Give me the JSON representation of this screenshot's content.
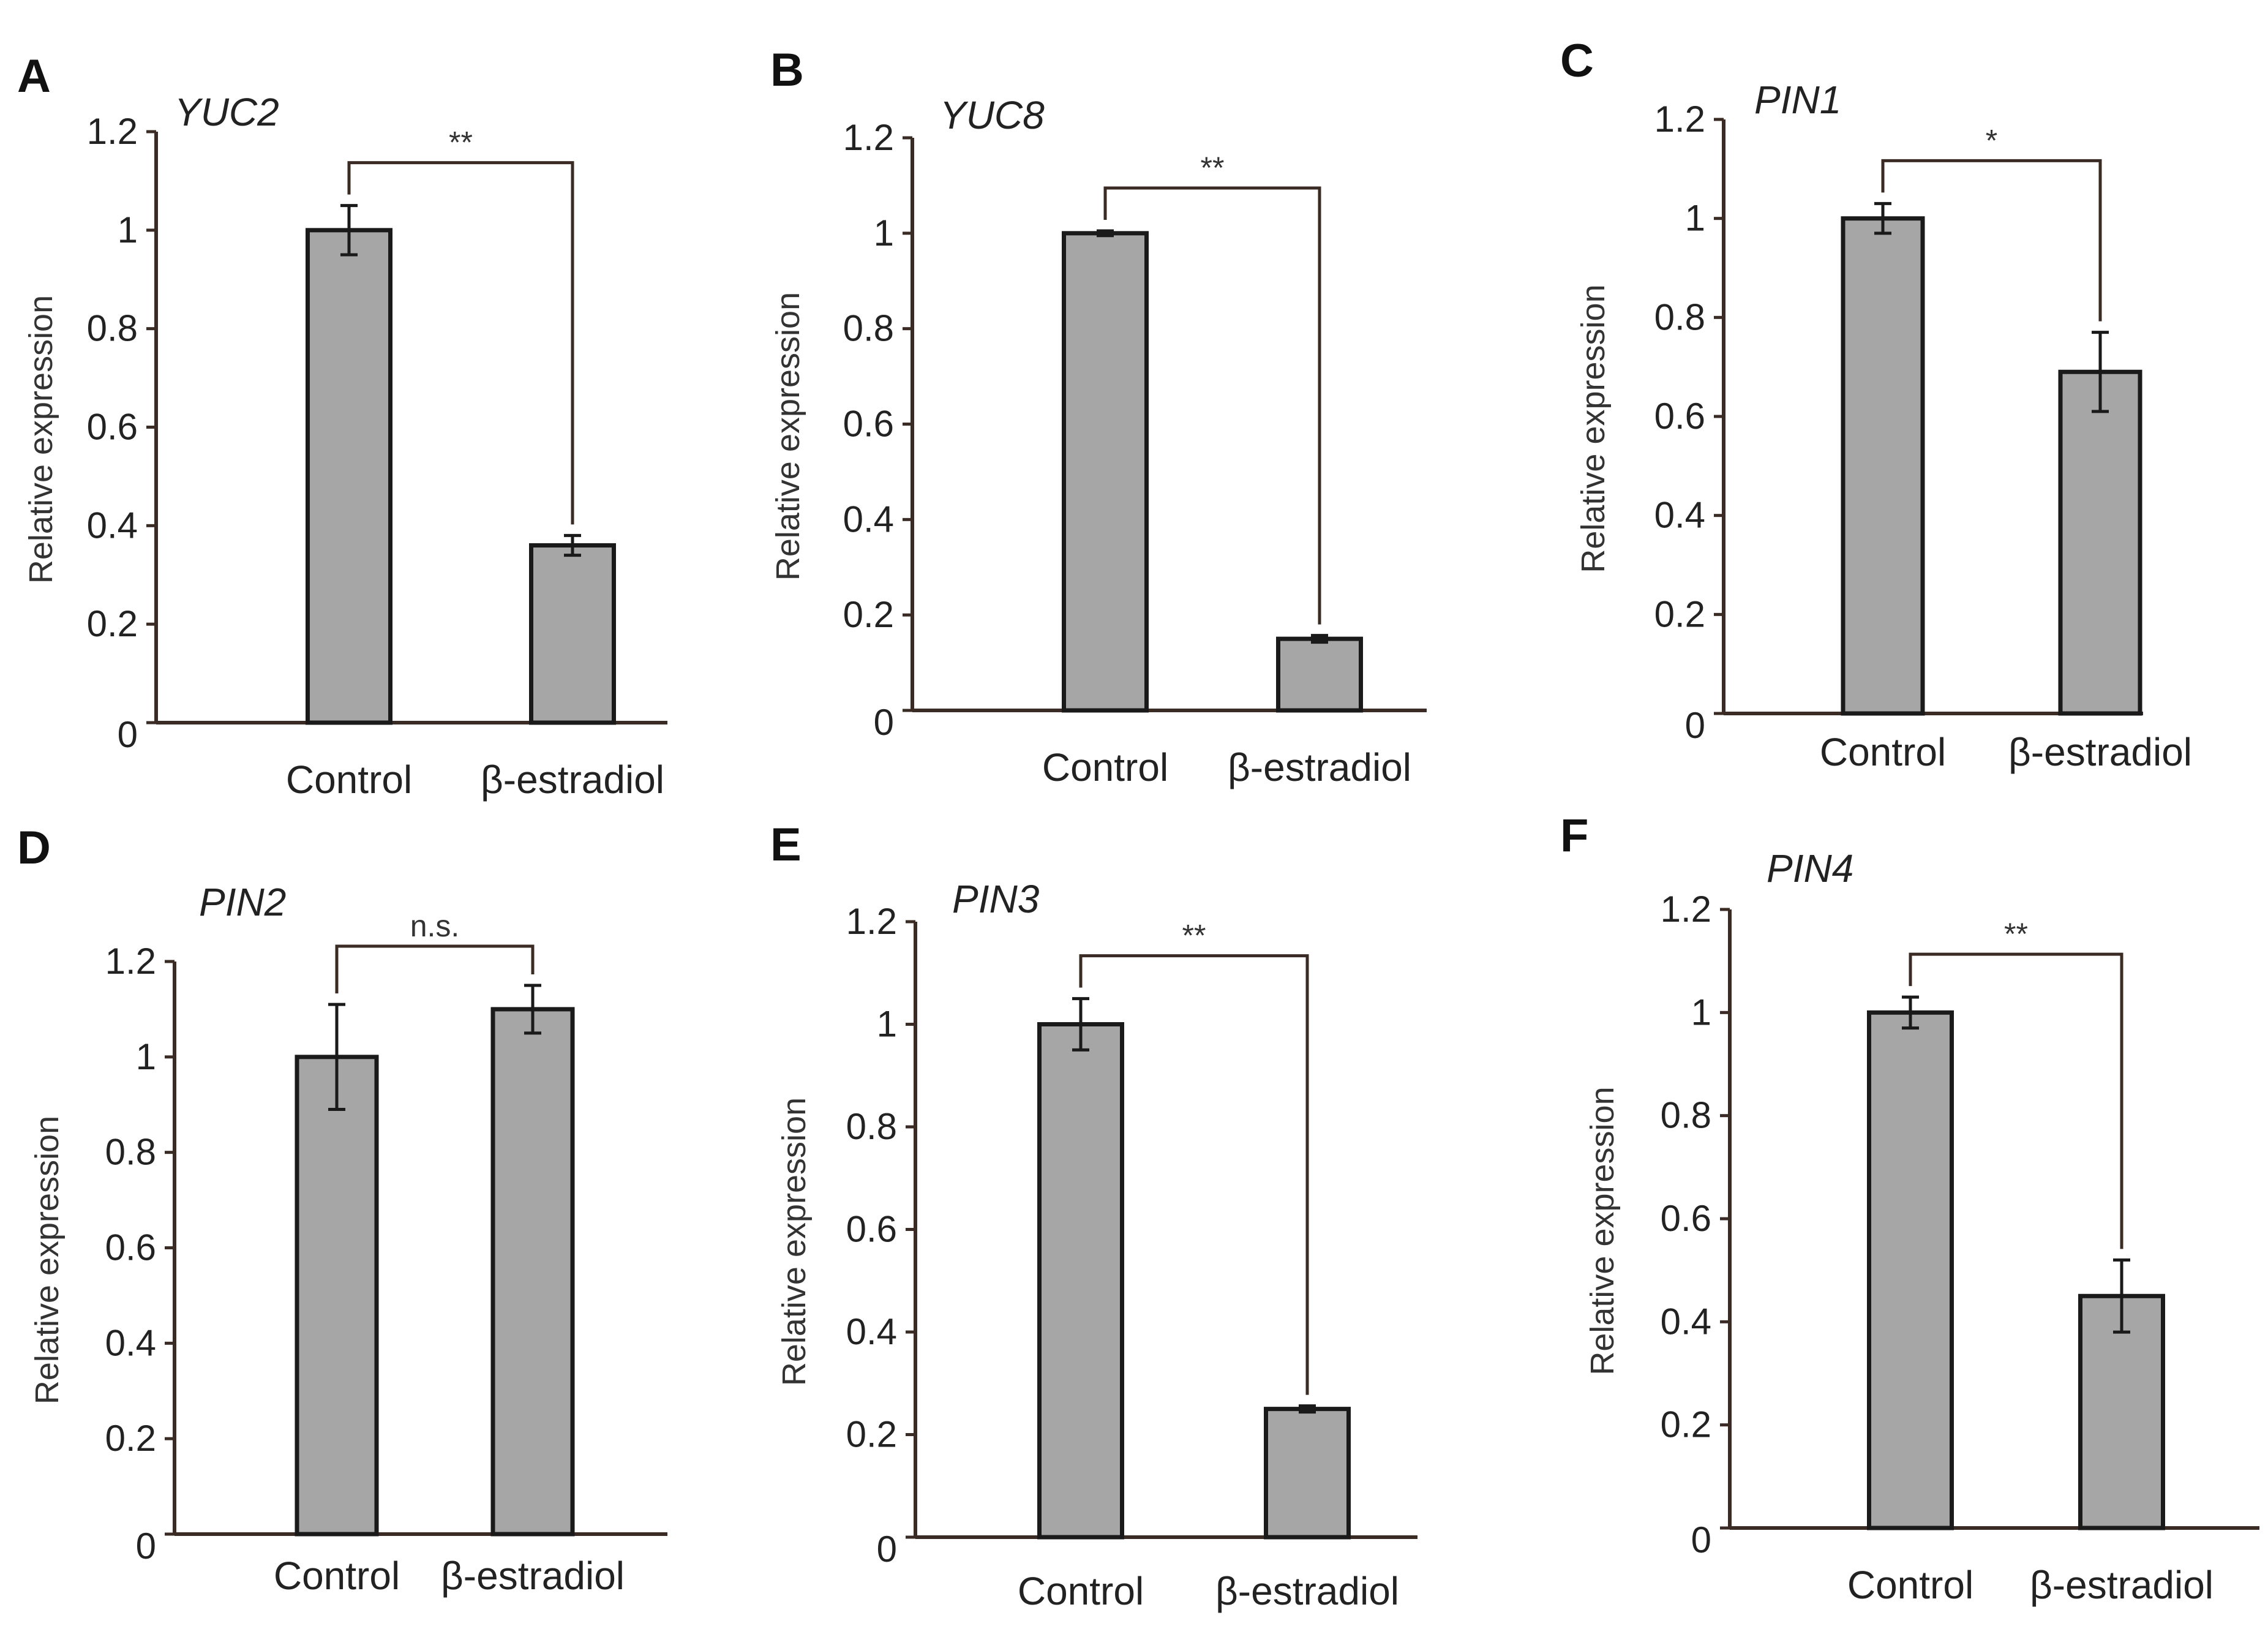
{
  "chart_data": [
    {
      "type": "bar",
      "panel": "A",
      "title": "YUC2",
      "categories": [
        "Control",
        "β-estradiol"
      ],
      "values": [
        1.0,
        0.36
      ],
      "errors": [
        0.05,
        0.02
      ],
      "significance": "**",
      "ylabel": "Relative expression",
      "xlabel": "",
      "ylim": [
        0,
        1.2
      ],
      "yticks": [
        "0",
        "0.2",
        "0.4",
        "0.6",
        "0.8",
        "1",
        "1.2"
      ]
    },
    {
      "type": "bar",
      "panel": "B",
      "title": "YUC8",
      "categories": [
        "Control",
        "β-estradiol"
      ],
      "values": [
        1.0,
        0.15
      ],
      "errors": [
        0.005,
        0.007
      ],
      "significance": "**",
      "ylabel": "Relative expression",
      "xlabel": "",
      "ylim": [
        0,
        1.2
      ],
      "yticks": [
        "0",
        "0.2",
        "0.4",
        "0.6",
        "0.8",
        "1",
        "1.2"
      ]
    },
    {
      "type": "bar",
      "panel": "C",
      "title": "PIN1",
      "categories": [
        "Control",
        "β-estradiol"
      ],
      "values": [
        1.0,
        0.69
      ],
      "errors": [
        0.03,
        0.08
      ],
      "significance": "*",
      "ylabel": "Relative expression",
      "xlabel": "",
      "ylim": [
        0,
        1.2
      ],
      "yticks": [
        "0",
        "0.2",
        "0.4",
        "0.6",
        "0.8",
        "1",
        "1.2"
      ]
    },
    {
      "type": "bar",
      "panel": "D",
      "title": "PIN2",
      "categories": [
        "Control",
        "β-estradiol"
      ],
      "values": [
        1.0,
        1.1
      ],
      "errors": [
        0.11,
        0.05
      ],
      "significance": "n.s.",
      "ylabel": "Relative expression",
      "xlabel": "",
      "ylim": [
        0,
        1.2
      ],
      "yticks": [
        "0",
        "0.2",
        "0.4",
        "0.6",
        "0.8",
        "1",
        "1.2"
      ]
    },
    {
      "type": "bar",
      "panel": "E",
      "title": "PIN3",
      "categories": [
        "Control",
        "β-estradiol"
      ],
      "values": [
        1.0,
        0.25
      ],
      "errors": [
        0.05,
        0.006
      ],
      "significance": "**",
      "ylabel": "Relative expression",
      "xlabel": "",
      "ylim": [
        0,
        1.2
      ],
      "yticks": [
        "0",
        "0.2",
        "0.4",
        "0.6",
        "0.8",
        "1",
        "1.2"
      ]
    },
    {
      "type": "bar",
      "panel": "F",
      "title": "PIN4",
      "categories": [
        "Control",
        "β-estradiol"
      ],
      "values": [
        1.0,
        0.45
      ],
      "errors": [
        0.03,
        0.07
      ],
      "significance": "**",
      "ylabel": "Relative expression",
      "xlabel": "",
      "ylim": [
        0,
        1.2
      ],
      "yticks": [
        "0",
        "0.2",
        "0.4",
        "0.6",
        "0.8",
        "1",
        "1.2"
      ]
    }
  ],
  "colors": {
    "bar_fill": "#a6a6a6",
    "bar_stroke": "#1a1a1a",
    "axis": "#3b2b25",
    "bracket": "#3b2b25",
    "text": "#222222"
  }
}
